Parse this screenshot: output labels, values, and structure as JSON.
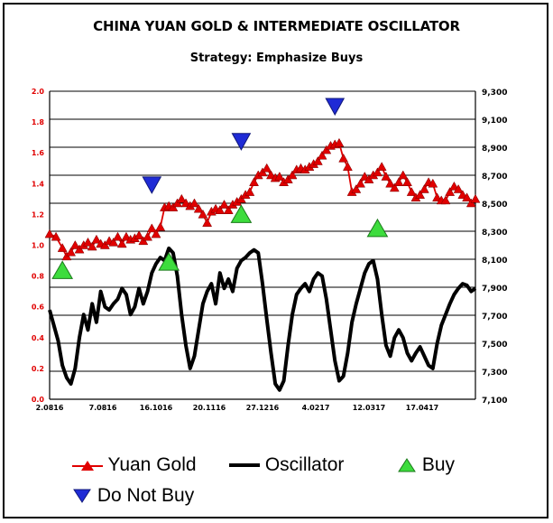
{
  "title": "CHINA YUAN GOLD & INTERMEDIATE OSCILLATOR",
  "subtitle": "Strategy: Emphasize Buys",
  "colors": {
    "yuan_gold": "#e00000",
    "oscillator": "#000000",
    "buy": "#3ddc3d",
    "do_not_buy": "#1f2bd6",
    "left_axis_text": "#e00000",
    "grid": "#000000"
  },
  "chart_data": {
    "type": "line",
    "title": "CHINA YUAN GOLD & INTERMEDIATE OSCILLATOR",
    "subtitle": "Strategy: Emphasize Buys",
    "x_tick_labels": [
      "2.0816",
      "7.0816",
      "16.1016",
      "20.1116",
      "27.1216",
      "4.0217",
      "12.0317",
      "17.0417"
    ],
    "y_left": {
      "min": 0.0,
      "max": 2.0,
      "step": 0.2,
      "tick_labels": [
        "0.0",
        "0.2",
        "0.4",
        "0.6",
        "0.8",
        "1.0",
        "1.2",
        "1.4",
        "1.6",
        "1.8",
        "2.0"
      ]
    },
    "y_right": {
      "min": 7100,
      "max": 9300,
      "step": 200,
      "tick_labels": [
        "7,100",
        "7,300",
        "7,500",
        "7,700",
        "7,900",
        "8,100",
        "8,300",
        "8,500",
        "8,700",
        "8,900",
        "9,100",
        "9,300"
      ]
    },
    "grid": "horizontal",
    "legend_position": "bottom",
    "series": [
      {
        "name": "Yuan Gold",
        "axis": "right",
        "marker": "triangle-up",
        "x": [
          0,
          1.5,
          3,
          4,
          5,
          6,
          7,
          8,
          9,
          10,
          11,
          12,
          13,
          14,
          15,
          16,
          17,
          18,
          19,
          20,
          21,
          22,
          23,
          24,
          25,
          26,
          27,
          28,
          29,
          30,
          31,
          32,
          33,
          34,
          35,
          36,
          37,
          38,
          39,
          40,
          41,
          42,
          43,
          44,
          45,
          46,
          47,
          48,
          49,
          50,
          51,
          52,
          53,
          54,
          55,
          56,
          57,
          58,
          59,
          60,
          61,
          62,
          63,
          64,
          65,
          66,
          67,
          68,
          69,
          70,
          71,
          72,
          73,
          74,
          75,
          76,
          77,
          78,
          79,
          80,
          81,
          82,
          83,
          84,
          85,
          86,
          87,
          88,
          89,
          90,
          91,
          92,
          93,
          94,
          95,
          96,
          97,
          98,
          99,
          100
        ],
        "values": [
          8280,
          8260,
          8180,
          8120,
          8150,
          8200,
          8170,
          8200,
          8220,
          8190,
          8240,
          8210,
          8200,
          8230,
          8220,
          8260,
          8210,
          8260,
          8240,
          8250,
          8270,
          8230,
          8260,
          8320,
          8280,
          8330,
          8470,
          8480,
          8470,
          8500,
          8530,
          8500,
          8480,
          8500,
          8460,
          8420,
          8360,
          8440,
          8460,
          8450,
          8490,
          8450,
          8490,
          8510,
          8530,
          8560,
          8580,
          8650,
          8700,
          8720,
          8750,
          8700,
          8680,
          8690,
          8650,
          8670,
          8700,
          8740,
          8750,
          8740,
          8760,
          8780,
          8800,
          8840,
          8880,
          8910,
          8920,
          8930,
          8820,
          8760,
          8580,
          8600,
          8640,
          8690,
          8670,
          8700,
          8720,
          8760,
          8690,
          8640,
          8610,
          8650,
          8700,
          8650,
          8580,
          8540,
          8560,
          8600,
          8650,
          8640,
          8540,
          8520,
          8520,
          8580,
          8620,
          8600,
          8560,
          8540,
          8500,
          8530
        ],
        "markers_x_stride": 1
      },
      {
        "name": "Oscillator",
        "axis": "left",
        "x": [
          0,
          1,
          2,
          3,
          4,
          5,
          6,
          7,
          8,
          9,
          10,
          11,
          12,
          13,
          14,
          15,
          16,
          17,
          18,
          19,
          20,
          21,
          22,
          23,
          24,
          25,
          26,
          27,
          28,
          29,
          30,
          31,
          32,
          33,
          34,
          35,
          36,
          37,
          38,
          39,
          40,
          41,
          42,
          43,
          44,
          45,
          46,
          47,
          48,
          49,
          50,
          51,
          52,
          53,
          54,
          55,
          56,
          57,
          58,
          59,
          60,
          61,
          62,
          63,
          64,
          65,
          66,
          67,
          68,
          69,
          70,
          71,
          72,
          73,
          74,
          75,
          76,
          77,
          78,
          79,
          80,
          81,
          82,
          83,
          84,
          85,
          86,
          87,
          88,
          89,
          90,
          91,
          92,
          93,
          94,
          95,
          96,
          97,
          98,
          99,
          100
        ],
        "values": [
          0.58,
          0.48,
          0.38,
          0.22,
          0.14,
          0.1,
          0.2,
          0.4,
          0.55,
          0.45,
          0.62,
          0.5,
          0.7,
          0.6,
          0.58,
          0.62,
          0.65,
          0.72,
          0.68,
          0.55,
          0.6,
          0.72,
          0.62,
          0.7,
          0.82,
          0.88,
          0.92,
          0.9,
          0.98,
          0.95,
          0.8,
          0.55,
          0.35,
          0.2,
          0.28,
          0.45,
          0.62,
          0.7,
          0.75,
          0.62,
          0.82,
          0.72,
          0.78,
          0.7,
          0.85,
          0.9,
          0.92,
          0.95,
          0.97,
          0.95,
          0.75,
          0.52,
          0.3,
          0.1,
          0.06,
          0.12,
          0.35,
          0.55,
          0.68,
          0.72,
          0.75,
          0.7,
          0.78,
          0.82,
          0.8,
          0.65,
          0.45,
          0.25,
          0.12,
          0.15,
          0.3,
          0.5,
          0.62,
          0.72,
          0.82,
          0.88,
          0.9,
          0.78,
          0.55,
          0.35,
          0.28,
          0.4,
          0.45,
          0.4,
          0.3,
          0.25,
          0.3,
          0.34,
          0.28,
          0.22,
          0.2,
          0.36,
          0.48,
          0.55,
          0.62,
          0.68,
          0.72,
          0.75,
          0.74,
          0.7,
          0.72
        ]
      },
      {
        "name": "Buy",
        "axis": "right",
        "marker": "triangle-up",
        "points": [
          {
            "x": 3,
            "y": 8020
          },
          {
            "x": 28,
            "y": 8080
          },
          {
            "x": 45,
            "y": 8420
          },
          {
            "x": 77,
            "y": 8320
          }
        ]
      },
      {
        "name": "Do Not Buy",
        "axis": "right",
        "marker": "triangle-down",
        "points": [
          {
            "x": 24,
            "y": 8630
          },
          {
            "x": 45,
            "y": 8940
          },
          {
            "x": 67,
            "y": 9190
          }
        ]
      }
    ]
  },
  "legend": {
    "items": [
      {
        "label": "Yuan Gold",
        "icon": "red-triangle-line-icon"
      },
      {
        "label": "Oscillator",
        "icon": "black-line-icon"
      },
      {
        "label": "Buy",
        "icon": "green-triangle-up-icon"
      },
      {
        "label": "Do Not Buy",
        "icon": "blue-triangle-down-icon"
      }
    ]
  }
}
